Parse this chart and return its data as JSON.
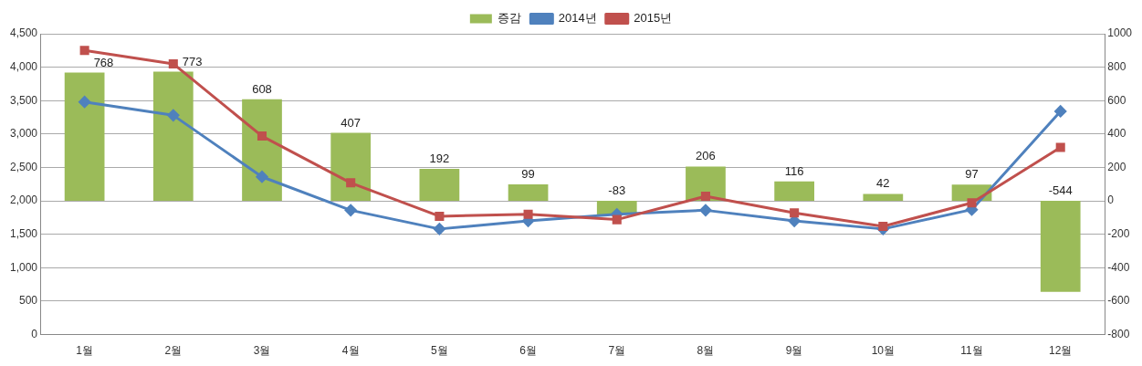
{
  "chart_data": {
    "type": "bar",
    "categories": [
      "1월",
      "2월",
      "3월",
      "4월",
      "5월",
      "6월",
      "7월",
      "8월",
      "9월",
      "10월",
      "11월",
      "12월"
    ],
    "series": [
      {
        "name": "증감",
        "axis": "y2",
        "color": "#9bbb59",
        "values": [
          768,
          773,
          608,
          407,
          192,
          99,
          -83,
          206,
          116,
          42,
          97,
          -544
        ],
        "value_labels": [
          "768",
          "773",
          "608",
          "407",
          "192",
          "99",
          "-83",
          "206",
          "116",
          "42",
          "97",
          "-544"
        ]
      },
      {
        "name": "2014년",
        "type": "line",
        "marker": "diamond",
        "color": "#4f81bd",
        "values": [
          3480,
          3280,
          2360,
          1860,
          1580,
          1700,
          1800,
          1860,
          1700,
          1580,
          1870,
          3340
        ]
      },
      {
        "name": "2015년",
        "type": "line",
        "marker": "square",
        "color": "#c0504d",
        "values": [
          4250,
          4050,
          2970,
          2270,
          1770,
          1800,
          1720,
          2070,
          1820,
          1620,
          1970,
          2800
        ]
      }
    ],
    "ylim": [
      0,
      4500
    ],
    "yticks": [
      0,
      500,
      {
        "value": 1000,
        "label": "1,000"
      },
      {
        "value": 1500,
        "label": "1,500"
      },
      {
        "value": 2000,
        "label": "2,000"
      },
      {
        "value": 2500,
        "label": "2,500"
      },
      {
        "value": 3000,
        "label": "3,000"
      },
      {
        "value": 3500,
        "label": "3,500"
      },
      {
        "value": 4000,
        "label": "4,000"
      },
      {
        "value": 4500,
        "label": "4,500"
      }
    ],
    "y2lim": [
      -800,
      1000
    ],
    "y2ticks": [
      -800,
      -600,
      -400,
      -200,
      0,
      200,
      400,
      600,
      800,
      1000
    ],
    "grid": "y",
    "legend": "top"
  }
}
